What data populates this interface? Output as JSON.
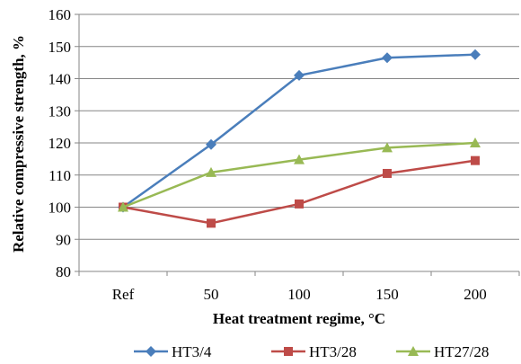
{
  "chart_data": {
    "type": "line",
    "title": "",
    "xlabel": "Heat treatment regime, °C",
    "ylabel": "Relative compressive strength, %",
    "categories": [
      "Ref",
      "50",
      "100",
      "150",
      "200"
    ],
    "ylim": [
      80,
      160
    ],
    "yticks": [
      80,
      90,
      100,
      110,
      120,
      130,
      140,
      150,
      160
    ],
    "grid": "horizontal",
    "legend_position": "bottom",
    "series": [
      {
        "name": "HT3/4",
        "color": "#4a7ebb",
        "marker": "diamond",
        "values": [
          100,
          119.5,
          141,
          146.5,
          147.5
        ]
      },
      {
        "name": "HT3/28",
        "color": "#be4b48",
        "marker": "square",
        "values": [
          100,
          95,
          101,
          110.5,
          114.5
        ]
      },
      {
        "name": "HT27/28",
        "color": "#98b954",
        "marker": "triangle",
        "values": [
          100,
          110.8,
          114.8,
          118.5,
          120
        ]
      }
    ]
  }
}
